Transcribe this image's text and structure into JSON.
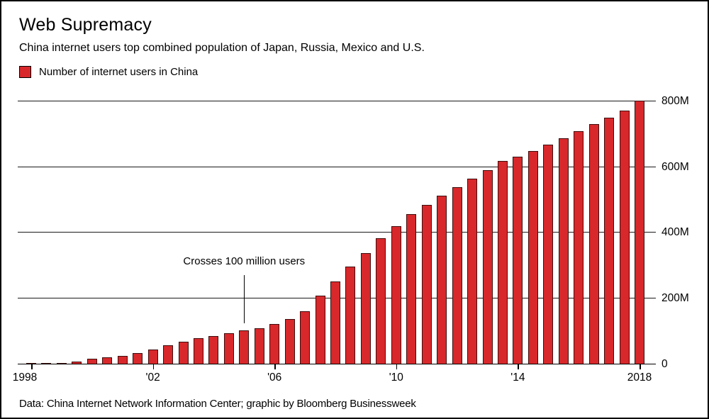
{
  "header": {
    "title": "Web Supremacy",
    "subtitle": "China internet users top combined population of Japan, Russia, Mexico and U.S."
  },
  "legend": {
    "label": "Number of internet users in China",
    "swatch_color": "#d8282b"
  },
  "footer": {
    "text": "Data: China Internet Network Information Center; graphic by Bloomberg Businessweek"
  },
  "chart_data": {
    "type": "bar",
    "title": "Web Supremacy",
    "series_name": "Number of internet users in China",
    "unit": "millions of users",
    "frequency": "semiannual",
    "x": [
      "1998-H1",
      "1998-H2",
      "1999-H1",
      "1999-H2",
      "2000-H1",
      "2000-H2",
      "2001-H1",
      "2001-H2",
      "2002-H1",
      "2002-H2",
      "2003-H1",
      "2003-H2",
      "2004-H1",
      "2004-H2",
      "2005-H1",
      "2005-H2",
      "2006-H1",
      "2006-H2",
      "2007-H1",
      "2007-H2",
      "2008-H1",
      "2008-H2",
      "2009-H1",
      "2009-H2",
      "2010-H1",
      "2010-H2",
      "2011-H1",
      "2011-H2",
      "2012-H1",
      "2012-H2",
      "2013-H1",
      "2013-H2",
      "2014-H1",
      "2014-H2",
      "2015-H1",
      "2015-H2",
      "2016-H1",
      "2016-H2",
      "2017-H1",
      "2017-H2",
      "2018-H1"
    ],
    "values": [
      1.2,
      2.1,
      4.0,
      8.9,
      16.9,
      22.5,
      26.5,
      33.7,
      45.8,
      59.1,
      68.0,
      79.5,
      87.0,
      94.0,
      103.0,
      111.0,
      123.0,
      137.0,
      162.0,
      210.0,
      253.0,
      298.0,
      338.0,
      384.0,
      420.0,
      457.0,
      485.0,
      513.0,
      538.0,
      564.0,
      591.0,
      618.0,
      632.0,
      649.0,
      668.0,
      688.0,
      710.0,
      731.0,
      751.0,
      772.0,
      802.0
    ],
    "x_tick_labels": [
      "1998",
      "'02",
      "'06",
      "'10",
      "'14",
      "2018"
    ],
    "x_tick_indices": [
      0,
      8,
      16,
      24,
      32,
      40
    ],
    "y_ticks": [
      {
        "value": 0,
        "label": "0"
      },
      {
        "value": 200,
        "label": "200M"
      },
      {
        "value": 400,
        "label": "400M"
      },
      {
        "value": 600,
        "label": "600M"
      },
      {
        "value": 800,
        "label": "800M"
      }
    ],
    "ylim": [
      0,
      840
    ],
    "grid": "horizontal",
    "legend_position": "top-left",
    "bar_color": "#d8282b",
    "bar_border_color": "#3f0d0d",
    "annotation": {
      "text": "Crosses 100 million users",
      "x_index": 14,
      "at_value": 103.0
    }
  }
}
